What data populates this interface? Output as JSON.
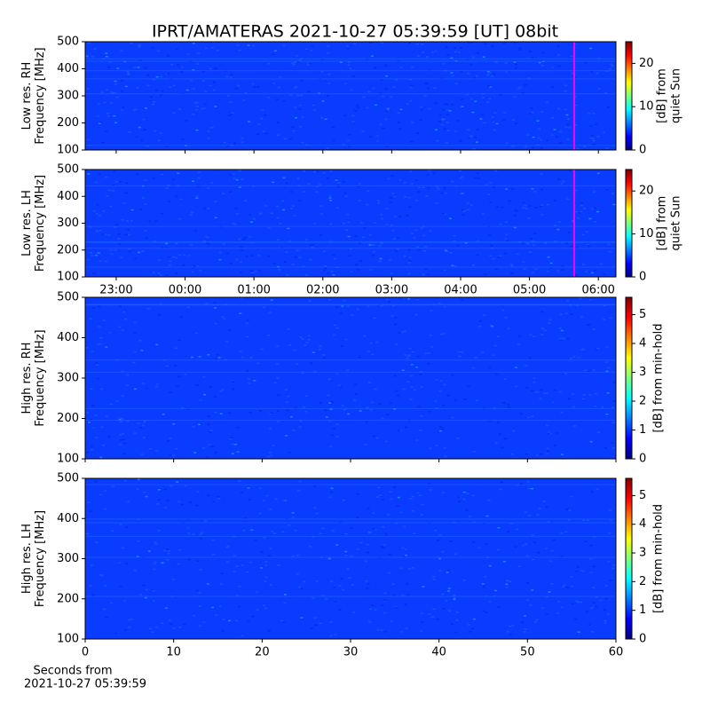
{
  "title": "IPRT/AMATERAS 2021-10-27 05:39:59 [UT]   08bit",
  "chart_data": [
    {
      "type": "heatmap",
      "ylabel": [
        "Low res. RH",
        "Frequency [MHz]"
      ],
      "xlim": [
        -1.45,
        6.255
      ],
      "xticks": [
        {
          "value": -1,
          "label": "23:00"
        },
        {
          "value": 0,
          "label": "00:00"
        },
        {
          "value": 1,
          "label": "01:00"
        },
        {
          "value": 2,
          "label": "02:00"
        },
        {
          "value": 3,
          "label": "03:00"
        },
        {
          "value": 4,
          "label": "04:00"
        },
        {
          "value": 5,
          "label": "05:00"
        },
        {
          "value": 6,
          "label": "06:00"
        }
      ],
      "ylim": [
        100,
        500
      ],
      "yticks": [
        100,
        200,
        300,
        400,
        500
      ],
      "marker_x": 5.65,
      "marker_color": "#ff00ff",
      "colorbar": {
        "label": [
          "[dB] from",
          "quiet Sun"
        ],
        "lim": [
          0,
          25
        ],
        "ticks": [
          0,
          10,
          20
        ]
      }
    },
    {
      "type": "heatmap",
      "ylabel": [
        "Low res. LH",
        "Frequency [MHz]"
      ],
      "xlim": [
        -1.45,
        6.255
      ],
      "xticks": [
        {
          "value": -1,
          "label": "23:00"
        },
        {
          "value": 0,
          "label": "00:00"
        },
        {
          "value": 1,
          "label": "01:00"
        },
        {
          "value": 2,
          "label": "02:00"
        },
        {
          "value": 3,
          "label": "03:00"
        },
        {
          "value": 4,
          "label": "04:00"
        },
        {
          "value": 5,
          "label": "05:00"
        },
        {
          "value": 6,
          "label": "06:00"
        }
      ],
      "ylim": [
        100,
        500
      ],
      "yticks": [
        100,
        200,
        300,
        400,
        500
      ],
      "marker_x": 5.65,
      "marker_color": "#ff00ff",
      "colorbar": {
        "label": [
          "[dB] from",
          "quiet Sun"
        ],
        "lim": [
          0,
          25
        ],
        "ticks": [
          0,
          10,
          20
        ]
      }
    },
    {
      "type": "heatmap",
      "ylabel": [
        "High res. RH",
        "Frequency [MHz]"
      ],
      "xlim": [
        0,
        60
      ],
      "xticks": [
        0,
        10,
        20,
        30,
        40,
        50,
        60
      ],
      "ylim": [
        100,
        500
      ],
      "yticks": [
        100,
        200,
        300,
        400,
        500
      ],
      "colorbar": {
        "label": [
          "[dB] from min-hold"
        ],
        "lim": [
          0,
          5.6
        ],
        "ticks": [
          0,
          1,
          2,
          3,
          4,
          5
        ]
      }
    },
    {
      "type": "heatmap",
      "ylabel": [
        "High res. LH",
        "Frequency [MHz]"
      ],
      "xlim": [
        0,
        60
      ],
      "xticks": [
        0,
        10,
        20,
        30,
        40,
        50,
        60
      ],
      "xlabel": [
        "Seconds from",
        "2021-10-27 05:39:59"
      ],
      "ylim": [
        100,
        500
      ],
      "yticks": [
        100,
        200,
        300,
        400,
        500
      ],
      "colorbar": {
        "label": [
          "[dB] from min-hold"
        ],
        "lim": [
          0,
          5.6
        ],
        "ticks": [
          0,
          1,
          2,
          3,
          4,
          5
        ]
      }
    }
  ]
}
